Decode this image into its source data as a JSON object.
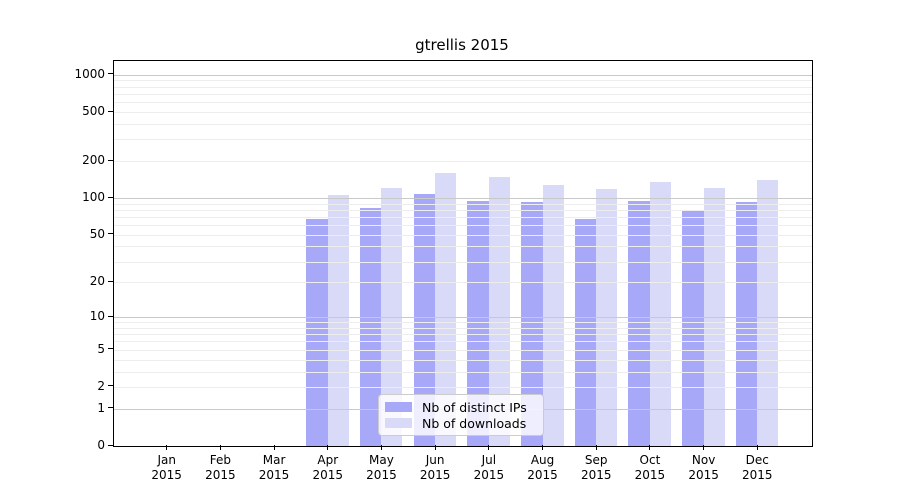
{
  "figure": {
    "background_color": "#ffffff",
    "text_color": "#000000"
  },
  "chart_data": {
    "type": "bar",
    "title": "gtrellis 2015",
    "categories": [
      "Jan",
      "Feb",
      "Mar",
      "Apr",
      "May",
      "Jun",
      "Jul",
      "Aug",
      "Sep",
      "Oct",
      "Nov",
      "Dec"
    ],
    "category_year": "2015",
    "series": [
      {
        "name": "Nb of distinct IPs",
        "color": "#a8a8f8",
        "values": [
          0,
          0,
          0,
          67,
          83,
          108,
          95,
          93,
          67,
          94,
          78,
          93
        ]
      },
      {
        "name": "Nb of downloads",
        "color": "#d9d9f8",
        "values": [
          0,
          0,
          0,
          105,
          121,
          161,
          148,
          128,
          119,
          135,
          121,
          140
        ]
      }
    ],
    "y_axis": {
      "scale": "log(1+x)",
      "tick_values": [
        0,
        1,
        2,
        5,
        10,
        20,
        50,
        100,
        200,
        500,
        1000
      ],
      "top_value": 1294
    },
    "grid": {
      "major_lines_at": [
        1,
        10,
        100,
        1000
      ],
      "minor_lines": "2-9 per decade",
      "major_color": "#c9c9c9",
      "minor_color": "#ededed"
    },
    "legend": {
      "location": "lower center",
      "background": "rgba(255,255,255,0.8)",
      "border_color": "#cccccc"
    }
  }
}
